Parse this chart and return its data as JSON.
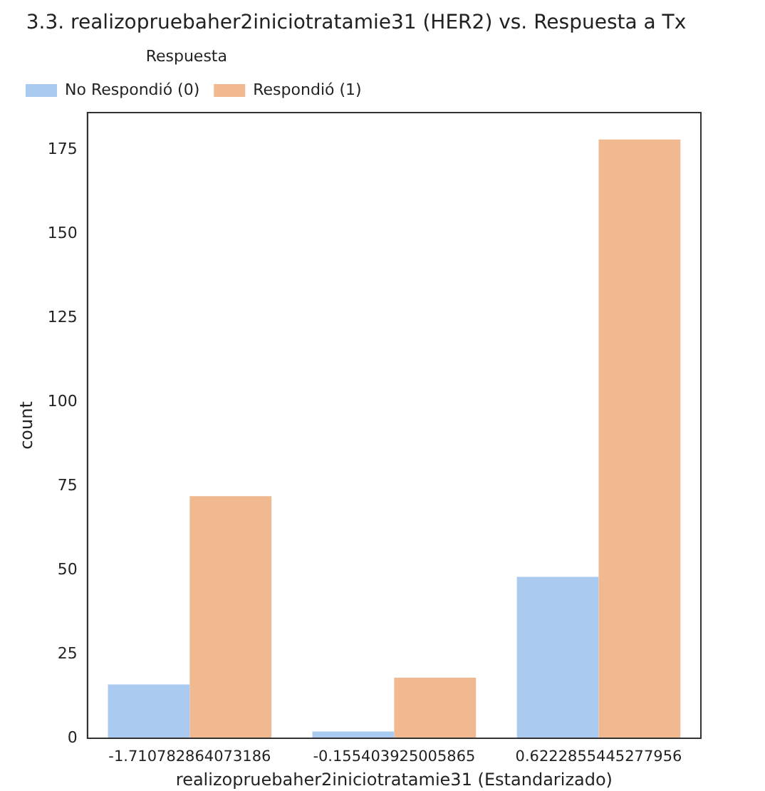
{
  "chart_data": {
    "type": "bar",
    "title": "3.3. realizopruebaher2iniciotratamie31 (HER2) vs. Respuesta a Tx",
    "xlabel": "realizopruebaher2iniciotratamie31 (Estandarizado)",
    "ylabel": "count",
    "legend_title": "Respuesta",
    "categories": [
      "-1.710782864073186",
      "-0.155403925005865",
      "0.6222855445277956"
    ],
    "series": [
      {
        "name": "No Respondió (0)",
        "color": "#abcaef",
        "values": [
          16,
          2,
          48
        ]
      },
      {
        "name": "Respondió (1)",
        "color": "#f0b990",
        "values": [
          72,
          18,
          178
        ]
      }
    ],
    "ylim": [
      0,
      186
    ],
    "yticks": [
      0,
      25,
      50,
      75,
      100,
      125,
      150,
      175
    ],
    "grid": false,
    "legend": "top left"
  }
}
